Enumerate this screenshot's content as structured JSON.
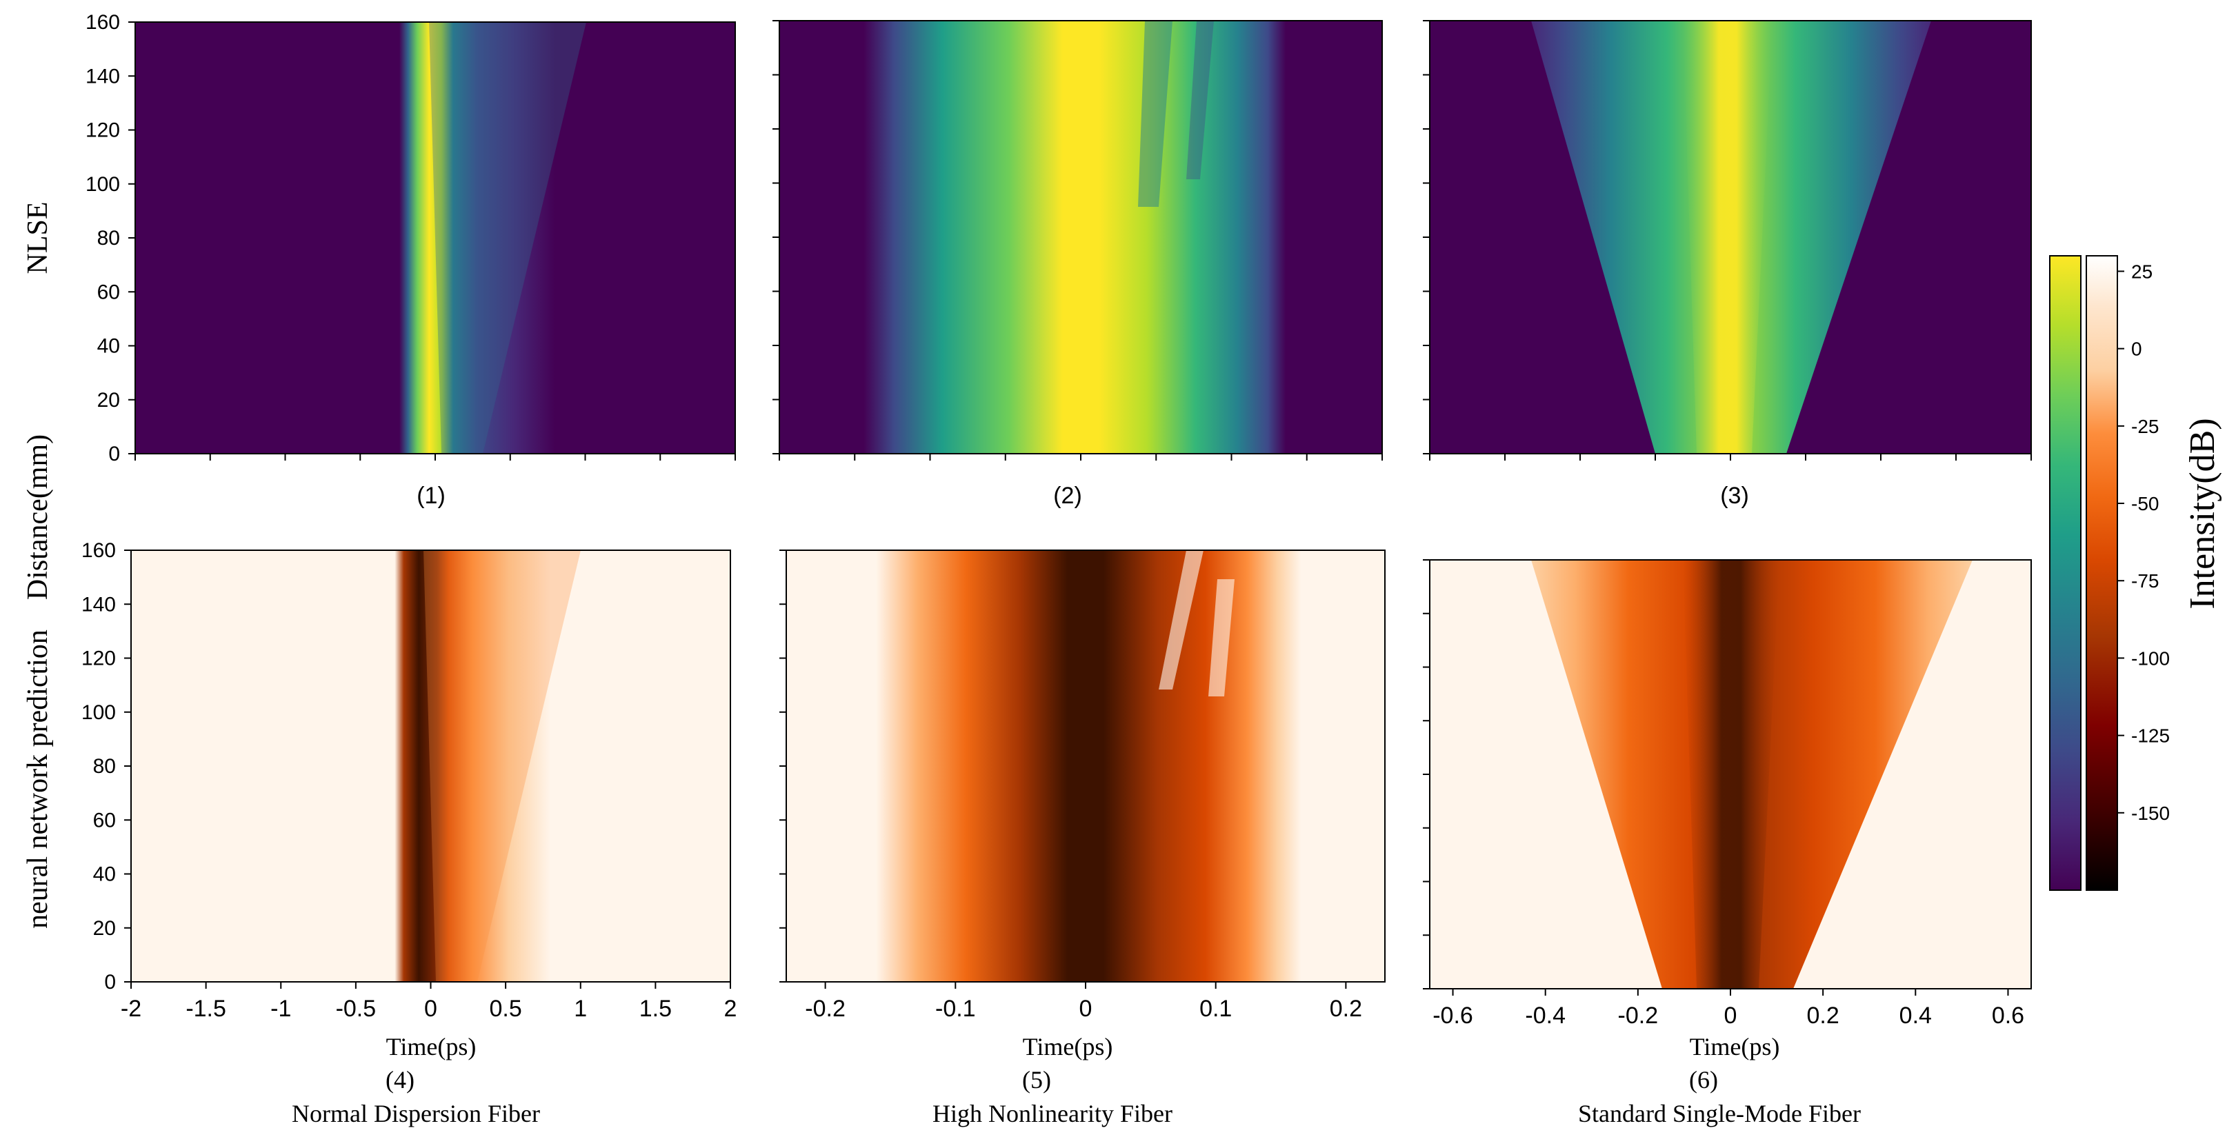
{
  "figure": {
    "row_labels": {
      "top": "NLSE",
      "bottom": "neural network prediction",
      "shared": "Distance(mm)"
    },
    "colorbar_label": "Intensity(dB)",
    "colormaps": {
      "top": "viridis",
      "bottom": "oranges-dark"
    },
    "palette": {
      "viridis": [
        "#440154",
        "#482878",
        "#3e4a89",
        "#31688e",
        "#26828e",
        "#1f9e89",
        "#35b779",
        "#6ece58",
        "#b5de2b",
        "#fde725"
      ],
      "oranges_dark": [
        "#fff5eb",
        "#fee6ce",
        "#fdd0a2",
        "#fdae6b",
        "#fd8d3c",
        "#f16913",
        "#d94801",
        "#a63603",
        "#7f2704",
        "#3d1200"
      ]
    }
  },
  "chart_data": [
    {
      "panel": "(1)",
      "type": "heatmap",
      "colormap": "viridis",
      "x_range": [
        -2,
        2
      ],
      "y_range": [
        0,
        160
      ],
      "y_ticks": [
        "0",
        "20",
        "40",
        "60",
        "80",
        "100",
        "120",
        "140",
        "160"
      ],
      "x_ticks": [],
      "xlabel": "",
      "ylabel": "",
      "footer": []
    },
    {
      "panel": "(2)",
      "type": "heatmap",
      "colormap": "viridis",
      "x_range": [
        -0.23,
        0.23
      ],
      "y_range": [
        0,
        160
      ],
      "y_ticks": [],
      "x_ticks": [],
      "xlabel": "",
      "ylabel": "",
      "footer": []
    },
    {
      "panel": "(3)",
      "type": "heatmap",
      "colormap": "viridis",
      "x_range": [
        -0.65,
        0.65
      ],
      "y_range": [
        0,
        160
      ],
      "y_ticks": [],
      "x_ticks": [],
      "xlabel": "",
      "ylabel": "",
      "footer": []
    },
    {
      "panel": "(4)",
      "type": "heatmap",
      "colormap": "oranges-dark",
      "x_range": [
        -2,
        2
      ],
      "y_range": [
        0,
        160
      ],
      "y_ticks": [
        "0",
        "20",
        "40",
        "60",
        "80",
        "100",
        "120",
        "140",
        "160"
      ],
      "x_ticks": [
        "-2",
        "-1.5",
        "-1",
        "-0.5",
        "0",
        "0.5",
        "1",
        "1.5",
        "2"
      ],
      "xlabel": "Time(ps)",
      "ylabel": "",
      "footer": [
        "(4)",
        "Normal Dispersion Fiber"
      ]
    },
    {
      "panel": "(5)",
      "type": "heatmap",
      "colormap": "oranges-dark",
      "x_range": [
        -0.23,
        0.23
      ],
      "y_range": [
        0,
        160
      ],
      "y_ticks": [],
      "x_ticks": [
        "-0.2",
        "-0.1",
        "0",
        "0.1",
        "0.2"
      ],
      "xlabel": "Time(ps)",
      "ylabel": "",
      "footer": [
        "(5)",
        "High Nonlinearity Fiber"
      ]
    },
    {
      "panel": "(6)",
      "type": "heatmap",
      "colormap": "oranges-dark",
      "x_range": [
        -0.65,
        0.65
      ],
      "y_range": [
        0,
        160
      ],
      "y_ticks": [],
      "x_ticks": [
        "-0.6",
        "-0.4",
        "-0.2",
        "0",
        "0.2",
        "0.4",
        "0.6"
      ],
      "xlabel": "Time(ps)",
      "ylabel": "",
      "footer": [
        "(6)",
        "Standard Single-Mode Fiber"
      ]
    }
  ],
  "colorbars": [
    {
      "colormap": "viridis",
      "range": [
        -175,
        30
      ],
      "ticks": []
    },
    {
      "colormap": "oranges-dark",
      "range": [
        -175,
        30
      ],
      "ticks": [
        "25",
        "0",
        "-25",
        "-50",
        "-75",
        "-100",
        "-125",
        "-150"
      ]
    }
  ]
}
